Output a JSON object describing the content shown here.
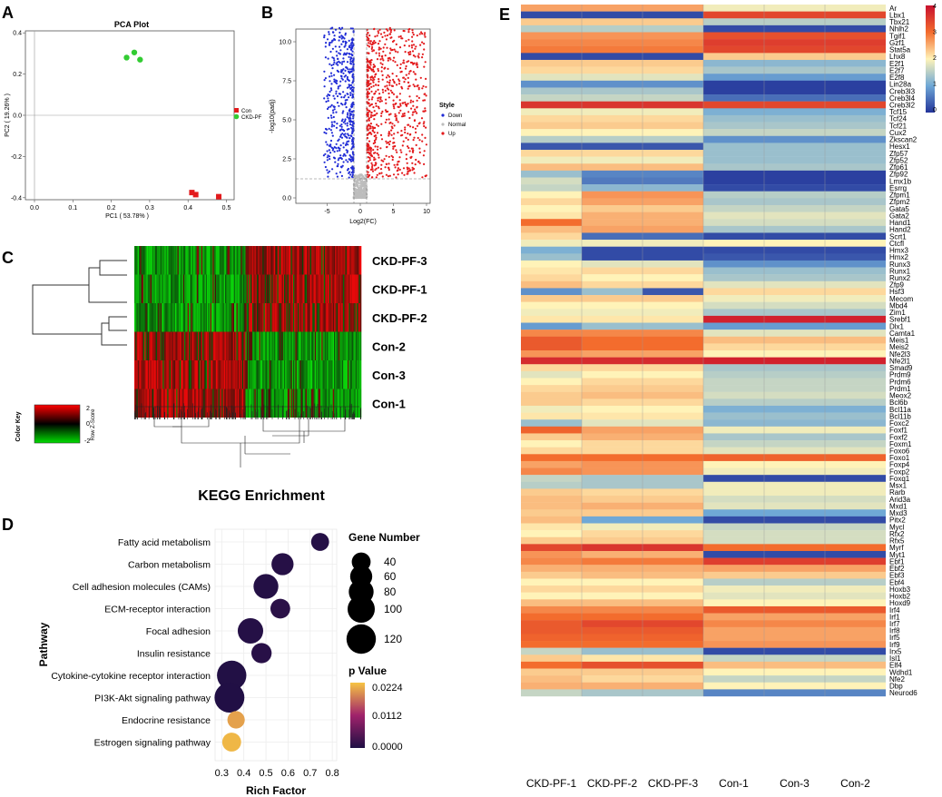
{
  "panels": {
    "a": "A",
    "b": "B",
    "c": "C",
    "d": "D",
    "e": "E"
  },
  "pca": {
    "title": "PCA Plot",
    "xlabel": "PC1 ( 53.78% )",
    "ylabel": "PC2 ( 19.26% )",
    "x_ticks": [
      "0.0",
      "0.1",
      "0.2",
      "0.3",
      "0.4",
      "0.5"
    ],
    "y_ticks": [
      "0.4",
      "0.2",
      "0.0",
      "-0.2",
      "-0.4"
    ],
    "legend": [
      {
        "label": "Con",
        "color": "#e31a1c"
      },
      {
        "label": "CKD-PF",
        "color": "#33cc33"
      }
    ],
    "points_con": [
      [
        0.41,
        -0.375
      ],
      [
        0.42,
        -0.385
      ],
      [
        0.48,
        -0.395
      ]
    ],
    "points_ckd": [
      [
        0.24,
        0.28
      ],
      [
        0.26,
        0.305
      ],
      [
        0.275,
        0.27
      ]
    ]
  },
  "volcano": {
    "ylabel": "-log10(padj)",
    "xlabel": "Log2(FC)",
    "x_ticks": [
      "-5",
      "0",
      "5",
      "10"
    ],
    "y_ticks": [
      "10.0",
      "7.5",
      "5.0",
      "2.5",
      "0.0"
    ],
    "legend_title": "Style",
    "legend": [
      {
        "label": "Down",
        "color": "#1f2bd6"
      },
      {
        "label": "Normal",
        "color": "#bdbdbd"
      },
      {
        "label": "Up",
        "color": "#e31a1c"
      }
    ]
  },
  "heatmap_c": {
    "rows": [
      "CKD-PF-3",
      "CKD-PF-1",
      "CKD-PF-2",
      "Con-2",
      "Con-3",
      "Con-1"
    ],
    "color_key_title": "Color Key",
    "color_key_axis": "Row Z-Score",
    "color_key_ticks": [
      "2",
      "0",
      "-2"
    ]
  },
  "kegg": {
    "title": "KEGG Enrichment",
    "xlabel": "Rich Factor",
    "ylabel": "Pathway",
    "x_ticks": [
      "0.3",
      "0.4",
      "0.5",
      "0.6",
      "0.7",
      "0.8"
    ],
    "size_legend_title": "Gene Number",
    "size_legend": [
      "40",
      "60",
      "80",
      "100",
      "120"
    ],
    "color_legend_title": "p Value",
    "color_legend": [
      "0.0224",
      "0.0112",
      "0.0000"
    ]
  },
  "chart_data": [
    {
      "type": "scatter",
      "title": "KEGG Enrichment",
      "xlabel": "Rich Factor",
      "ylabel": "Pathway",
      "xlim": [
        0.27,
        0.82
      ],
      "categories": [
        "Fatty acid metabolism",
        "Carbon metabolism",
        "Cell adhesion molecules (CAMs)",
        "ECM-receptor interaction",
        "Focal adhesion",
        "Insulin resistance",
        "Cytokine-cytokine receptor interaction",
        "PI3K-Akt signaling pathway",
        "Endocrine resistance",
        "Estrogen signaling pathway"
      ],
      "rich_factor": [
        0.745,
        0.575,
        0.5,
        0.565,
        0.43,
        0.48,
        0.345,
        0.335,
        0.365,
        0.345
      ],
      "gene_number": [
        35,
        60,
        80,
        45,
        85,
        48,
        120,
        125,
        32,
        40
      ],
      "p_value": [
        0.0005,
        0.0006,
        0.0004,
        0.001,
        0.0005,
        0.0008,
        0.0003,
        0.0002,
        0.02,
        0.0215
      ]
    },
    {
      "type": "heatmap",
      "columns": [
        "CKD-PF-1",
        "CKD-PF-2",
        "CKD-PF-3",
        "Con-1",
        "Con-3",
        "Con-2"
      ],
      "rows": [
        "Ar",
        "Lbx1",
        "Tbx21",
        "Nhlh2",
        "Tgif1",
        "Gzf1",
        "Stat5a",
        "Lhx8",
        "E2f1",
        "E2f7",
        "E2f8",
        "Lin28a",
        "Creb3l3",
        "Creb3l4",
        "Creb3l2",
        "Tcf15",
        "Tcf24",
        "Tcf21",
        "Cux2",
        "Zkscan2",
        "Hesx1",
        "Zfp57",
        "Zfp52",
        "Zfp61",
        "Zfp92",
        "Lmx1b",
        "Esrrg",
        "Zfpm1",
        "Zfpm2",
        "Gata5",
        "Gata2",
        "Hand1",
        "Hand2",
        "Scrt1",
        "Ctcfl",
        "Hmx3",
        "Hmx2",
        "Runx3",
        "Runx1",
        "Runx2",
        "Zfp9",
        "Hsf3",
        "Mecom",
        "Mbd4",
        "Zim1",
        "Srebf1",
        "Dlx1",
        "Camta1",
        "Meis1",
        "Meis2",
        "Nfe2l3",
        "Nfe2l1",
        "Smad9",
        "Prdm9",
        "Prdm6",
        "Prdm1",
        "Meox2",
        "Bcl6b",
        "Bcl11a",
        "Bcl11b",
        "Foxc2",
        "Foxf1",
        "Foxf2",
        "Foxm1",
        "Foxo6",
        "Foxo1",
        "Foxp4",
        "Foxp2",
        "Foxq1",
        "Msx1",
        "Rarb",
        "Arid3a",
        "Mxd1",
        "Mxd3",
        "Pitx2",
        "Mycl",
        "Rfx2",
        "Rfx5",
        "Myrf",
        "Myt1",
        "Ebf1",
        "Ebf2",
        "Ebf3",
        "Ebf4",
        "Hoxb3",
        "Hoxb2",
        "Hoxd9",
        "Irf4",
        "Irf1",
        "Irf7",
        "Irf8",
        "Irf5",
        "Irf9",
        "Irx5",
        "Isl1",
        "Elf4",
        "Wdhd1",
        "Nfe2",
        "Dbp",
        "Neurod6"
      ],
      "values": [
        [
          2.6,
          2.6,
          2.6,
          1.9,
          1.9,
          1.9
        ],
        [
          0.2,
          0.2,
          0.2,
          3.4,
          3.4,
          3.4
        ],
        [
          2.3,
          2.3,
          2.3,
          1.5,
          1.5,
          1.5
        ],
        [
          1.5,
          1.5,
          1.5,
          0.2,
          0.2,
          0.2
        ],
        [
          2.7,
          2.7,
          2.7,
          3.3,
          3.3,
          3.3
        ],
        [
          2.8,
          2.8,
          2.8,
          3.5,
          3.5,
          3.5
        ],
        [
          2.9,
          2.9,
          2.9,
          3.4,
          3.4,
          3.4
        ],
        [
          0.2,
          0.2,
          0.2,
          2.3,
          2.3,
          2.3
        ],
        [
          2.3,
          2.3,
          2.3,
          1.2,
          1.2,
          1.2
        ],
        [
          2.2,
          2.2,
          2.2,
          1.4,
          1.4,
          1.4
        ],
        [
          1.8,
          1.8,
          1.8,
          0.9,
          0.9,
          0.9
        ],
        [
          0.8,
          0.8,
          0.8,
          0.1,
          0.1,
          0.1
        ],
        [
          1.4,
          1.4,
          1.4,
          0.1,
          0.1,
          0.1
        ],
        [
          1.6,
          1.6,
          1.6,
          0.5,
          0.5,
          0.5
        ],
        [
          3.6,
          3.6,
          3.6,
          3.4,
          3.4,
          3.4
        ],
        [
          1.9,
          1.9,
          1.9,
          1.1,
          1.1,
          1.1
        ],
        [
          2.2,
          2.2,
          2.2,
          1.3,
          1.3,
          1.3
        ],
        [
          2.3,
          2.3,
          2.3,
          1.4,
          1.4,
          1.4
        ],
        [
          2.0,
          2.0,
          2.0,
          1.6,
          1.6,
          1.6
        ],
        [
          1.5,
          1.5,
          1.5,
          0.8,
          0.8,
          0.8
        ],
        [
          0.3,
          0.3,
          0.3,
          1.3,
          1.3,
          1.3
        ],
        [
          2.2,
          2.2,
          2.2,
          1.3,
          1.3,
          1.3
        ],
        [
          1.9,
          1.9,
          1.9,
          1.3,
          1.3,
          1.3
        ],
        [
          2.4,
          2.4,
          2.4,
          1.4,
          1.4,
          1.4
        ],
        [
          1.3,
          0.7,
          0.7,
          0.1,
          0.1,
          0.1
        ],
        [
          1.7,
          0.6,
          0.6,
          0.1,
          0.1,
          0.1
        ],
        [
          1.6,
          1.2,
          1.2,
          0.2,
          0.2,
          0.2
        ],
        [
          2.0,
          2.7,
          2.7,
          1.5,
          1.5,
          1.5
        ],
        [
          2.2,
          2.6,
          2.6,
          1.4,
          1.4,
          1.4
        ],
        [
          2.0,
          2.3,
          2.3,
          1.6,
          1.6,
          1.6
        ],
        [
          2.1,
          2.5,
          2.5,
          1.8,
          1.8,
          1.8
        ],
        [
          3.0,
          2.5,
          2.5,
          1.7,
          1.7,
          1.7
        ],
        [
          2.4,
          2.6,
          2.6,
          1.4,
          1.4,
          1.4
        ],
        [
          2.2,
          0.5,
          0.5,
          0.2,
          0.2,
          0.2
        ],
        [
          1.9,
          1.9,
          1.9,
          2.0,
          2.0,
          2.0
        ],
        [
          1.1,
          0.2,
          0.2,
          0.2,
          0.2,
          0.2
        ],
        [
          1.3,
          0.2,
          0.2,
          0.3,
          0.3,
          0.3
        ],
        [
          2.0,
          1.8,
          1.8,
          0.8,
          0.8,
          0.8
        ],
        [
          2.1,
          2.2,
          2.2,
          1.3,
          1.3,
          1.3
        ],
        [
          2.2,
          2.0,
          2.0,
          1.4,
          1.4,
          1.4
        ],
        [
          2.4,
          2.2,
          2.2,
          1.8,
          1.8,
          1.8
        ],
        [
          0.8,
          1.3,
          0.3,
          2.2,
          2.2,
          2.2
        ],
        [
          2.3,
          2.3,
          2.3,
          1.9,
          1.9,
          1.9
        ],
        [
          2.0,
          2.0,
          2.0,
          1.7,
          1.7,
          1.7
        ],
        [
          1.9,
          1.9,
          1.9,
          1.4,
          1.4,
          1.4
        ],
        [
          2.1,
          2.1,
          2.1,
          3.8,
          3.8,
          3.8
        ],
        [
          0.9,
          1.3,
          1.3,
          0.9,
          0.9,
          0.9
        ],
        [
          2.8,
          2.8,
          2.8,
          1.8,
          1.8,
          1.8
        ],
        [
          3.2,
          3.0,
          3.0,
          2.4,
          2.4,
          2.4
        ],
        [
          3.2,
          3.0,
          3.0,
          2.2,
          2.2,
          2.2
        ],
        [
          2.7,
          2.6,
          2.6,
          2.0,
          2.0,
          2.0
        ],
        [
          3.7,
          3.7,
          3.7,
          3.8,
          3.8,
          3.8
        ],
        [
          2.2,
          2.2,
          2.2,
          1.4,
          1.4,
          1.4
        ],
        [
          1.8,
          2.0,
          2.0,
          1.5,
          1.5,
          1.5
        ],
        [
          2.0,
          2.2,
          2.2,
          1.6,
          1.6,
          1.6
        ],
        [
          2.2,
          2.3,
          2.3,
          1.6,
          1.6,
          1.6
        ],
        [
          2.3,
          2.4,
          2.4,
          1.7,
          1.7,
          1.7
        ],
        [
          2.3,
          2.2,
          2.2,
          1.5,
          1.5,
          1.5
        ],
        [
          1.9,
          2.0,
          2.0,
          1.1,
          1.1,
          1.1
        ],
        [
          2.1,
          2.1,
          2.1,
          1.3,
          1.3,
          1.3
        ],
        [
          1.3,
          1.8,
          1.8,
          1.2,
          1.2,
          1.2
        ],
        [
          3.1,
          2.6,
          2.6,
          1.9,
          1.9,
          1.9
        ],
        [
          2.3,
          2.5,
          2.5,
          1.4,
          1.4,
          1.4
        ],
        [
          2.0,
          2.2,
          2.2,
          1.6,
          1.6,
          1.6
        ],
        [
          2.2,
          2.2,
          2.2,
          1.8,
          1.8,
          1.8
        ],
        [
          3.0,
          3.0,
          3.0,
          3.1,
          3.1,
          3.1
        ],
        [
          2.6,
          2.7,
          2.7,
          2.0,
          2.0,
          2.0
        ],
        [
          2.8,
          2.7,
          2.7,
          1.9,
          1.9,
          1.9
        ],
        [
          1.6,
          1.4,
          1.4,
          0.2,
          0.2,
          0.2
        ],
        [
          1.5,
          1.4,
          1.4,
          1.9,
          1.9,
          1.9
        ],
        [
          2.3,
          2.2,
          2.2,
          1.9,
          1.9,
          1.9
        ],
        [
          2.4,
          2.3,
          2.3,
          1.7,
          1.7,
          1.7
        ],
        [
          2.4,
          2.5,
          2.5,
          1.8,
          1.8,
          1.8
        ],
        [
          2.3,
          2.3,
          2.3,
          1.0,
          1.0,
          1.0
        ],
        [
          2.4,
          1.0,
          1.0,
          0.2,
          0.2,
          0.2
        ],
        [
          2.1,
          1.9,
          1.9,
          1.6,
          1.6,
          1.6
        ],
        [
          2.0,
          2.2,
          2.2,
          1.7,
          1.7,
          1.7
        ],
        [
          2.3,
          2.3,
          2.3,
          1.7,
          1.7,
          1.7
        ],
        [
          3.4,
          3.6,
          3.6,
          3.0,
          3.0,
          3.0
        ],
        [
          2.7,
          2.5,
          2.5,
          0.2,
          0.2,
          0.2
        ],
        [
          2.8,
          2.9,
          2.9,
          3.5,
          3.5,
          3.5
        ],
        [
          2.5,
          2.5,
          2.5,
          2.6,
          2.6,
          2.6
        ],
        [
          2.3,
          2.4,
          2.4,
          2.3,
          2.3,
          2.3
        ],
        [
          2.0,
          2.0,
          2.0,
          1.5,
          1.5,
          1.5
        ],
        [
          2.2,
          2.2,
          2.2,
          1.9,
          1.9,
          1.9
        ],
        [
          2.0,
          2.0,
          2.0,
          1.8,
          1.8,
          1.8
        ],
        [
          2.4,
          2.4,
          2.4,
          2.0,
          2.0,
          2.0
        ],
        [
          2.8,
          2.8,
          2.8,
          3.2,
          3.2,
          3.2
        ],
        [
          3.0,
          3.0,
          3.0,
          2.6,
          2.6,
          2.6
        ],
        [
          3.2,
          3.4,
          3.4,
          2.8,
          2.8,
          2.8
        ],
        [
          3.2,
          3.2,
          3.2,
          2.6,
          2.6,
          2.6
        ],
        [
          3.1,
          3.1,
          3.1,
          2.6,
          2.6,
          2.6
        ],
        [
          3.0,
          3.0,
          3.0,
          2.7,
          2.7,
          2.7
        ],
        [
          1.6,
          1.3,
          1.3,
          0.2,
          0.2,
          0.2
        ],
        [
          2.3,
          2.1,
          2.1,
          1.6,
          1.6,
          1.6
        ],
        [
          3.0,
          3.3,
          3.3,
          2.4,
          2.4,
          2.4
        ],
        [
          2.3,
          2.3,
          2.3,
          2.0,
          2.0,
          2.0
        ],
        [
          2.4,
          2.2,
          2.2,
          1.6,
          1.6,
          1.6
        ],
        [
          2.5,
          2.5,
          2.5,
          2.0,
          2.0,
          2.0
        ],
        [
          1.6,
          1.4,
          1.4,
          0.7,
          0.7,
          0.7
        ]
      ],
      "color_scale": {
        "min": 0,
        "max": 4,
        "ticks": [
          "4",
          "3",
          "2",
          "1",
          "0"
        ]
      }
    }
  ]
}
